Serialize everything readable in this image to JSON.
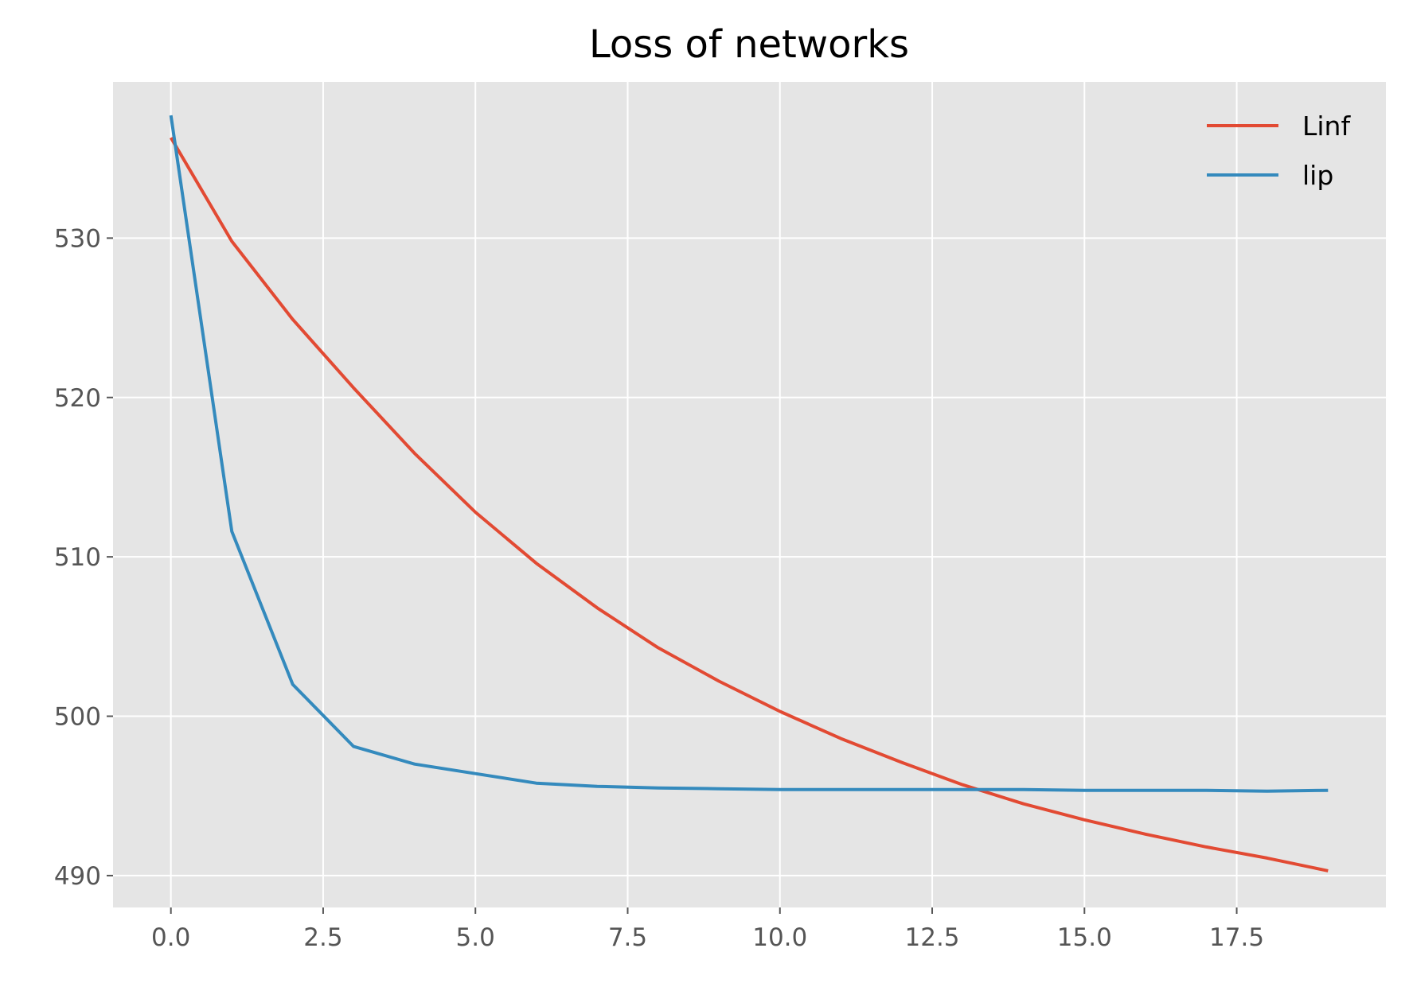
{
  "chart_data": {
    "type": "line",
    "title": "Loss of networks",
    "xlabel": "",
    "ylabel": "",
    "xlim": [
      -0.95,
      19.95
    ],
    "ylim": [
      488.0,
      539.8
    ],
    "grid": true,
    "legend_placement": "top-right",
    "x": [
      0,
      1,
      2,
      3,
      4,
      5,
      6,
      7,
      8,
      9,
      10,
      11,
      12,
      13,
      14,
      15,
      16,
      17,
      18,
      19
    ],
    "xticks": [
      0.0,
      2.5,
      5.0,
      7.5,
      10.0,
      12.5,
      15.0,
      17.5
    ],
    "xtick_labels": [
      "0.0",
      "2.5",
      "5.0",
      "7.5",
      "10.0",
      "12.5",
      "15.0",
      "17.5"
    ],
    "yticks": [
      490,
      500,
      510,
      520,
      530
    ],
    "ytick_labels": [
      "490",
      "500",
      "510",
      "520",
      "530"
    ],
    "series": [
      {
        "name": "Linf",
        "color": "#E24A33",
        "values": [
          536.3,
          529.8,
          524.9,
          520.6,
          516.5,
          512.8,
          509.6,
          506.8,
          504.3,
          502.2,
          500.3,
          498.6,
          497.1,
          495.7,
          494.5,
          493.5,
          492.6,
          491.8,
          491.1,
          490.3
        ]
      },
      {
        "name": "lip",
        "color": "#348ABD",
        "values": [
          537.7,
          511.6,
          502.0,
          498.1,
          497.0,
          496.4,
          495.8,
          495.6,
          495.5,
          495.45,
          495.4,
          495.4,
          495.4,
          495.4,
          495.4,
          495.35,
          495.35,
          495.35,
          495.3,
          495.35
        ]
      }
    ]
  }
}
